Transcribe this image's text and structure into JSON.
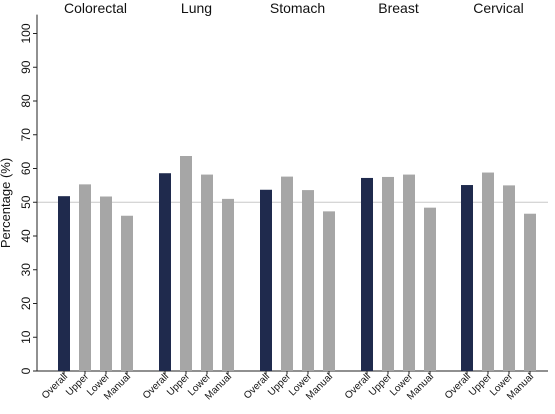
{
  "chart_data": {
    "type": "bar",
    "ylabel": "Percentage (%)",
    "ylim": [
      0,
      105
    ],
    "yticks": [
      0,
      10,
      20,
      30,
      40,
      50,
      60,
      70,
      80,
      90,
      100
    ],
    "reference_line": 50,
    "categories": [
      "Overall",
      "Upper",
      "Lower",
      "Manual"
    ],
    "panels": [
      {
        "title": "Colorectal",
        "values": [
          51.8,
          55.3,
          51.7,
          46.0
        ]
      },
      {
        "title": "Lung",
        "values": [
          58.6,
          63.7,
          58.2,
          51.0
        ]
      },
      {
        "title": "Stomach",
        "values": [
          53.7,
          57.6,
          53.6,
          47.3
        ]
      },
      {
        "title": "Breast",
        "values": [
          57.2,
          57.5,
          58.2,
          48.4
        ]
      },
      {
        "title": "Cervical",
        "values": [
          55.1,
          58.8,
          55.0,
          46.6
        ]
      }
    ],
    "colors": {
      "overall": "#1f2a4d",
      "other": "#a6a6a6",
      "reference_line": "#c8c8c8",
      "axis": "#222222"
    }
  }
}
